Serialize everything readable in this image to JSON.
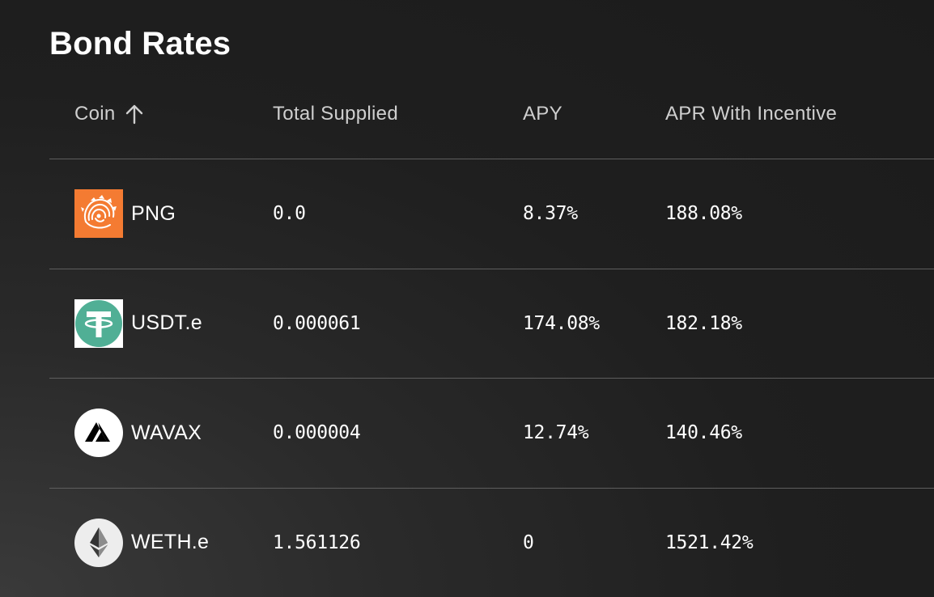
{
  "page": {
    "title": "Bond Rates"
  },
  "table": {
    "columns": [
      {
        "label": "Coin",
        "sort": "ascending"
      },
      {
        "label": "Total Supplied"
      },
      {
        "label": "APY"
      },
      {
        "label": "APR With Incentive"
      }
    ],
    "rows": [
      {
        "coin": "PNG",
        "icon": "png-pangolin-icon",
        "icon_bg": "#F47B32",
        "total_supplied": "0.0",
        "apy": "8.37%",
        "apr_incentive": "188.08%"
      },
      {
        "coin": "USDT.e",
        "icon": "usdt-tether-icon",
        "icon_bg": "#50AF95",
        "total_supplied": "0.000061",
        "apy": "174.08%",
        "apr_incentive": "182.18%"
      },
      {
        "coin": "WAVAX",
        "icon": "avax-icon",
        "icon_bg": "#FFFFFF",
        "total_supplied": "0.000004",
        "apy": "12.74%",
        "apr_incentive": "140.46%"
      },
      {
        "coin": "WETH.e",
        "icon": "ethereum-icon",
        "icon_bg": "#EDEDED",
        "total_supplied": "1.561126",
        "apy": "0",
        "apr_incentive": "1521.42%"
      }
    ]
  }
}
